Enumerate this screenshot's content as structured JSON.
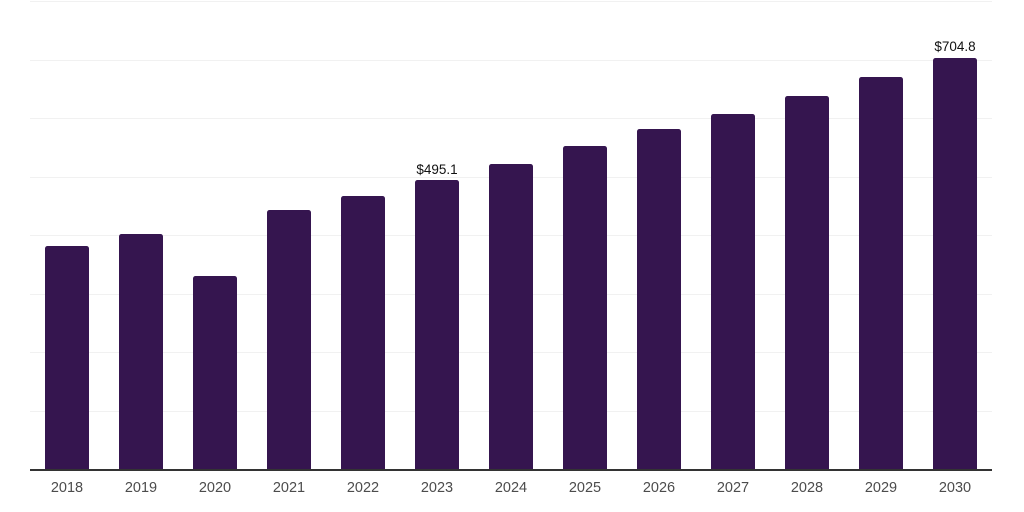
{
  "chart_data": {
    "type": "bar",
    "title": "",
    "xlabel": "",
    "ylabel": "",
    "categories": [
      "2018",
      "2019",
      "2020",
      "2021",
      "2022",
      "2023",
      "2024",
      "2025",
      "2026",
      "2027",
      "2028",
      "2029",
      "2030"
    ],
    "values": [
      383,
      404,
      332,
      444,
      468,
      495.1,
      523,
      554,
      582.5,
      609,
      639,
      672,
      704.8
    ],
    "data_labels": [
      null,
      null,
      null,
      null,
      null,
      "$495.1",
      null,
      null,
      null,
      null,
      null,
      null,
      "$704.8"
    ],
    "ylim": [
      0,
      800
    ],
    "gridline_interval": 100,
    "grid": "horizontal",
    "legend": "none",
    "colors": {
      "bar": "#35154F",
      "axis_line": "#333333",
      "gridline": "#F1F1F1",
      "tick_label": "#4C4C4C",
      "value_label": "#111111",
      "background": "#FFFFFF"
    }
  }
}
